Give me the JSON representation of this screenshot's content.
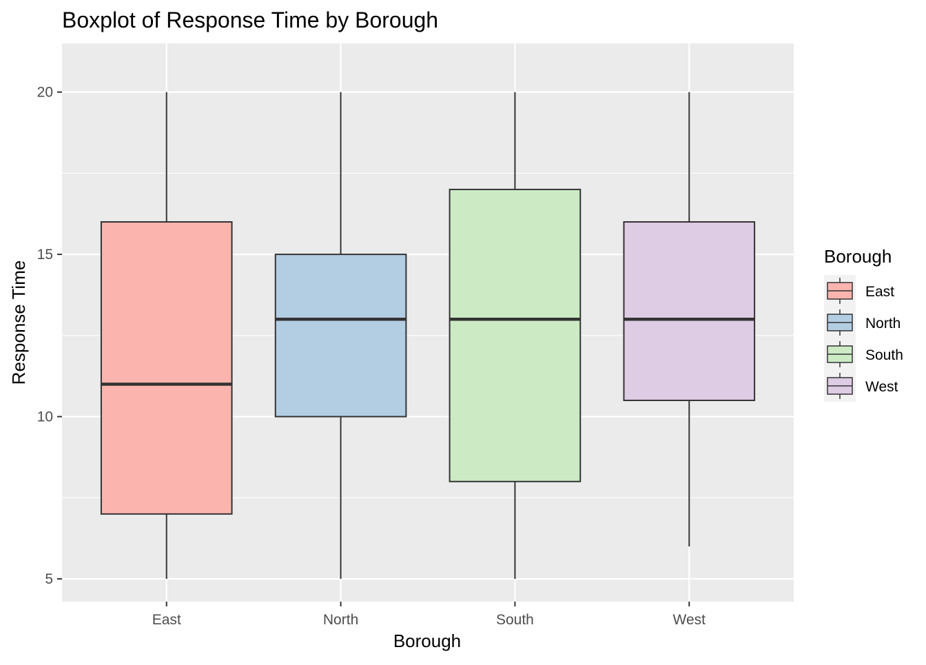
{
  "chart_data": {
    "type": "boxplot",
    "title": "Boxplot of Response Time by Borough",
    "xlabel": "Borough",
    "ylabel": "Response Time",
    "categories": [
      "East",
      "North",
      "South",
      "West"
    ],
    "ylim": [
      4.3,
      21.5
    ],
    "yticks": [
      5,
      10,
      15,
      20
    ],
    "grid": true,
    "legend": {
      "title": "Borough",
      "position": "right",
      "entries": [
        "East",
        "North",
        "South",
        "West"
      ]
    },
    "series": [
      {
        "name": "East",
        "min": 5,
        "q1": 7,
        "median": 11,
        "q3": 16,
        "max": 20,
        "color": "#FBB4AE"
      },
      {
        "name": "North",
        "min": 5,
        "q1": 10,
        "median": 13,
        "q3": 15,
        "max": 20,
        "color": "#B3CDE3"
      },
      {
        "name": "South",
        "min": 5,
        "q1": 8,
        "median": 13,
        "q3": 17,
        "max": 20,
        "color": "#CCEBC5"
      },
      {
        "name": "West",
        "min": 6,
        "q1": 10.5,
        "median": 13,
        "q3": 16,
        "max": 20,
        "color": "#DECBE4"
      }
    ],
    "panel_background": "#EBEBEB",
    "grid_color": "#FFFFFF",
    "box_outline": "#333333"
  }
}
